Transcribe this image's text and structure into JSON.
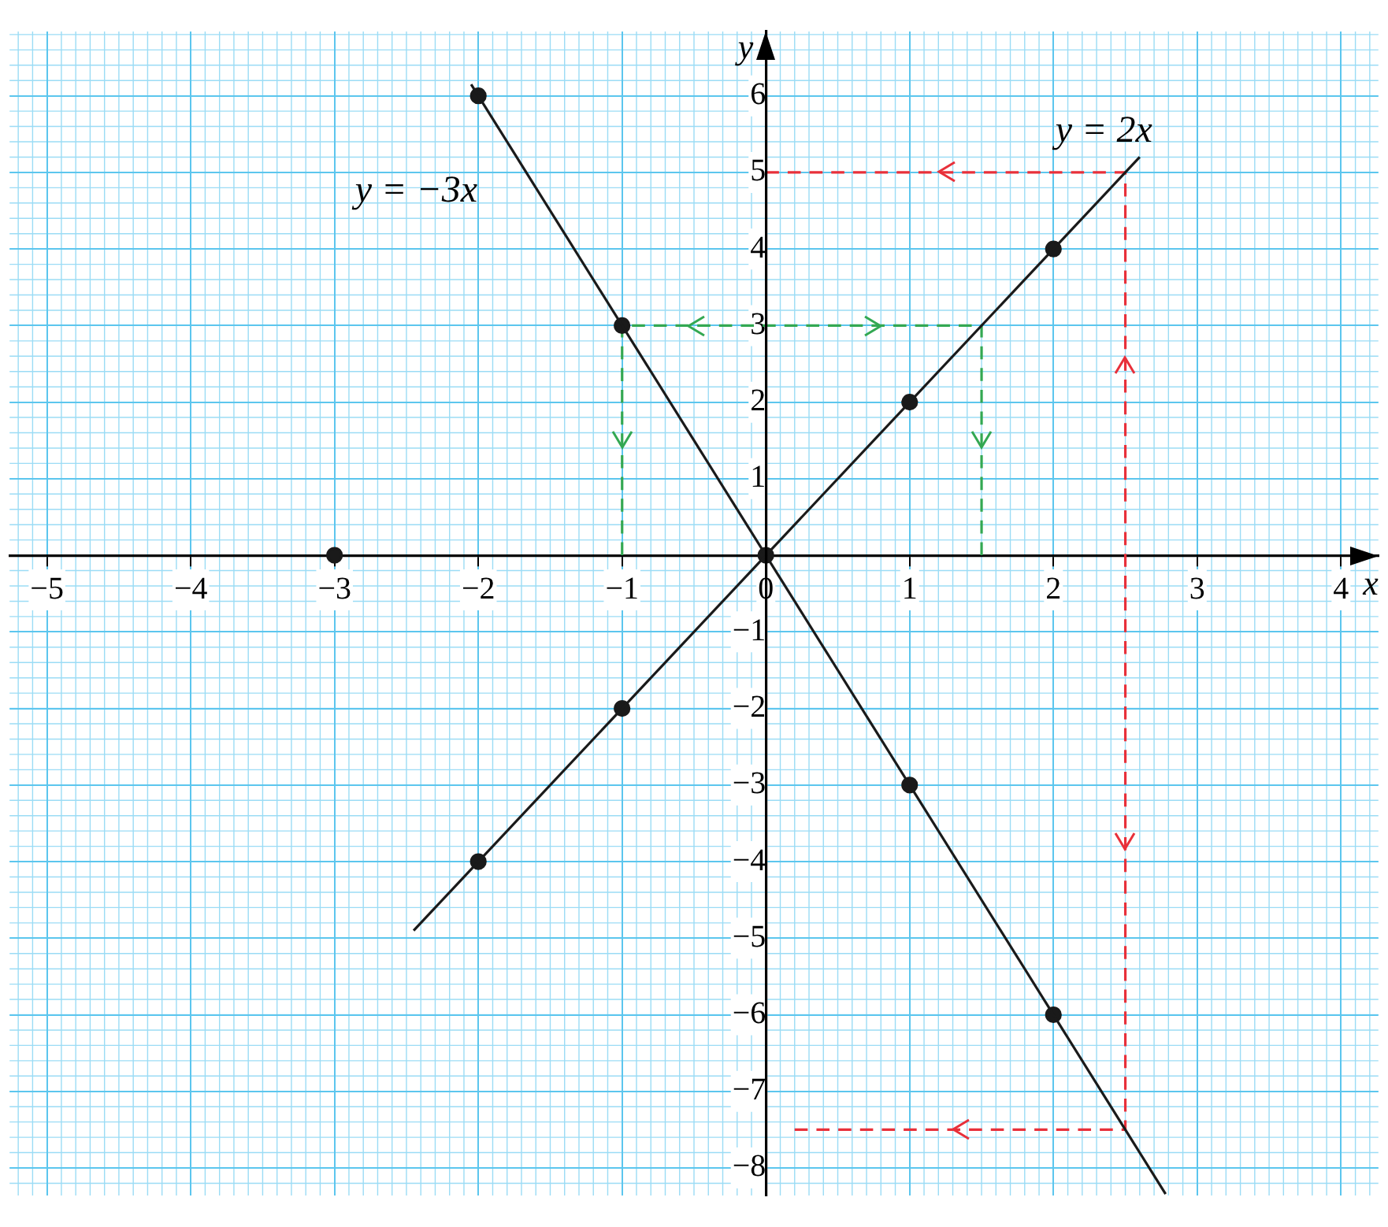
{
  "chart_data": {
    "type": "line",
    "xlabel": "x",
    "ylabel": "y",
    "xlim": [
      -5.26,
      4.26
    ],
    "ylim": [
      -8.36,
      6.84
    ],
    "xticks": [
      -5,
      -4,
      -3,
      -2,
      -1,
      0,
      1,
      2,
      3,
      4
    ],
    "yticks": [
      -8,
      -7,
      -6,
      -5,
      -4,
      -3,
      -2,
      -1,
      1,
      2,
      3,
      4,
      5,
      6
    ],
    "grid": true,
    "series": [
      {
        "name": "y = 2x",
        "x": [
          -2.45,
          2.6
        ],
        "values": [
          -4.9,
          5.2
        ],
        "color": "#1a1a1a",
        "marker": "none"
      },
      {
        "name": "y = −3x",
        "x": [
          -2.05,
          2.78
        ],
        "values": [
          6.15,
          -8.34
        ],
        "color": "#1a1a1a",
        "marker": "none"
      },
      {
        "type": "scatter",
        "x": [
          -2,
          -1,
          0,
          1,
          2,
          -2,
          -1,
          1,
          2,
          -3
        ],
        "values": [
          -4,
          -2,
          0,
          2,
          4,
          6,
          3,
          -3,
          -6,
          0
        ],
        "color": "#1a1a1a",
        "marker": "circle"
      },
      {
        "x": [
          0,
          2.5,
          2.5,
          2.5,
          0.2
        ],
        "values": [
          5,
          5,
          0,
          -7.5,
          -7.5
        ],
        "color": "#e8303a",
        "marker": "none",
        "line_style": "dashed"
      },
      {
        "x": [
          -1,
          -1,
          0,
          1.5,
          1.5
        ],
        "values": [
          0,
          3,
          3,
          3,
          0
        ],
        "color": "#33a852",
        "marker": "none",
        "line_style": "dashed"
      }
    ]
  }
}
